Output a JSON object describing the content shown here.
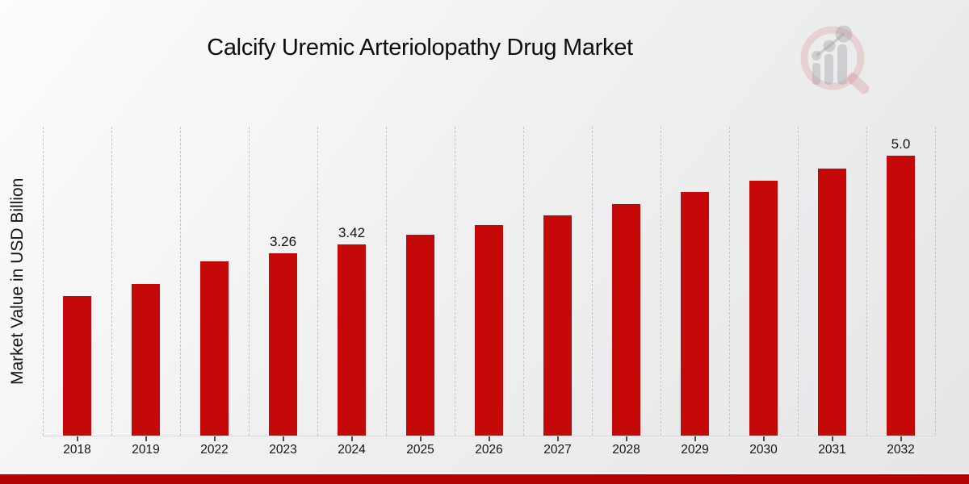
{
  "header": {
    "title": "Calcify Uremic Arteriolopathy Drug Market"
  },
  "logo": {
    "name": "market-research-future-watermark-logo"
  },
  "colors": {
    "bar": "#c50909",
    "accent_strip": "#b10404",
    "background_light": "#fdfdfd",
    "background_dark": "#e6e6e8",
    "gridline": "#c5c5c8",
    "text": "#141414"
  },
  "chart_data": {
    "type": "bar",
    "title": "Calcify Uremic Arteriolopathy Drug Market",
    "xlabel": "",
    "ylabel": "Market Value in USD Billion",
    "categories": [
      "2018",
      "2019",
      "2022",
      "2023",
      "2024",
      "2025",
      "2026",
      "2027",
      "2028",
      "2029",
      "2030",
      "2031",
      "2032"
    ],
    "values": [
      2.49,
      2.71,
      3.11,
      3.26,
      3.42,
      3.59,
      3.76,
      3.93,
      4.13,
      4.35,
      4.56,
      4.77,
      5.0
    ],
    "data_labels": [
      "",
      "",
      "",
      "3.26",
      "3.42",
      "",
      "",
      "",
      "",
      "",
      "",
      "",
      "5.0"
    ],
    "ylim": [
      0,
      5.52
    ],
    "grid": "vertical-dashed",
    "legend": "none",
    "bar_color": "#c50909"
  }
}
